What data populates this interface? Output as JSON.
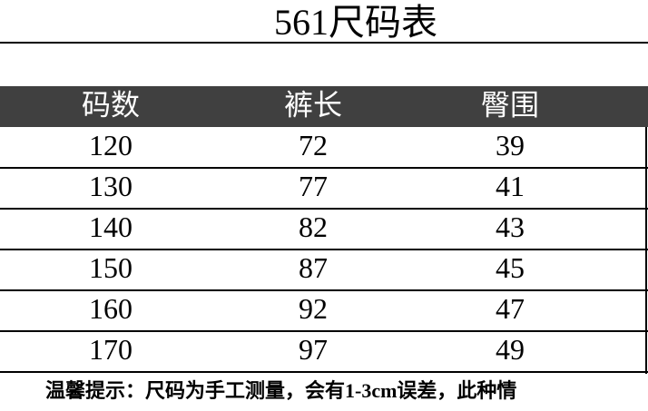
{
  "title": "561尺码表",
  "table": {
    "header": [
      "码数",
      "裤长",
      "臀围"
    ],
    "rows": [
      [
        120,
        72,
        39
      ],
      [
        130,
        77,
        41
      ],
      [
        140,
        82,
        43
      ],
      [
        150,
        87,
        45
      ],
      [
        160,
        92,
        47
      ],
      [
        170,
        97,
        49
      ]
    ]
  },
  "note": "温馨提示：尺码为手工测量，会有1-3cm误差，此种情"
}
